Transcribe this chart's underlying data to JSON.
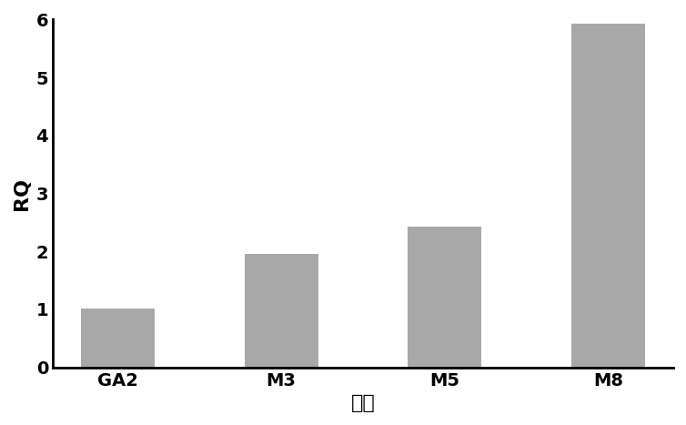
{
  "categories": [
    "GA2",
    "M3",
    "M5",
    "M8"
  ],
  "values": [
    1.02,
    1.95,
    2.43,
    5.93
  ],
  "bar_color": "#a8a8a8",
  "bar_edgecolor": "#a8a8a8",
  "title": "",
  "xlabel": "样品",
  "ylabel": "RQ",
  "ylim": [
    0,
    6
  ],
  "yticks": [
    0,
    1,
    2,
    3,
    4,
    5,
    6
  ],
  "xlabel_fontsize": 16,
  "ylabel_fontsize": 16,
  "tick_fontsize": 14,
  "bar_width": 0.45,
  "background_color": "#ffffff"
}
